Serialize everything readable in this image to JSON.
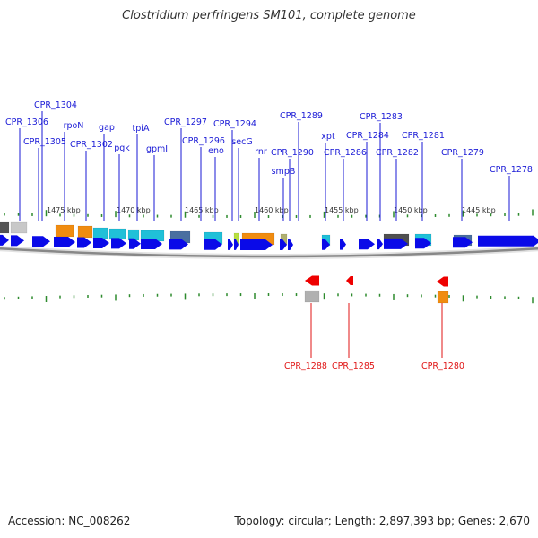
{
  "title": "Clostridium perfringens SM101, complete genome",
  "footer": {
    "accession": "Accession: NC_008262",
    "summary": "Topology: circular; Length: 2,897,393 bp; Genes: 2,670"
  },
  "colors": {
    "forward_label": "#1a1ad6",
    "reverse_label": "#e01515",
    "forward_arrow": "#0a0ae8",
    "reverse_arrow": "#ee0000",
    "tick": "#2e8b2e",
    "backbone": "#888888"
  },
  "scale_ticks": [
    {
      "label": "1475 kbp"
    },
    {
      "label": "1470 kbp"
    },
    {
      "label": "1465 kbp"
    },
    {
      "label": "1460 kbp"
    },
    {
      "label": "1455 kbp"
    },
    {
      "label": "1450 kbp"
    },
    {
      "label": "1445 kbp"
    }
  ],
  "forward_genes": [
    {
      "label": "CPR_1306"
    },
    {
      "label": "CPR_1304"
    },
    {
      "label": "CPR_1305"
    },
    {
      "label": "rpoN"
    },
    {
      "label": "CPR_1302"
    },
    {
      "label": "gap"
    },
    {
      "label": "pgk"
    },
    {
      "label": "tpiA"
    },
    {
      "label": "gpmI"
    },
    {
      "label": "CPR_1297"
    },
    {
      "label": "CPR_1296"
    },
    {
      "label": "eno"
    },
    {
      "label": "CPR_1294"
    },
    {
      "label": "secG"
    },
    {
      "label": "rnr"
    },
    {
      "label": "smpB"
    },
    {
      "label": "CPR_1290"
    },
    {
      "label": "CPR_1289"
    },
    {
      "label": "xpt"
    },
    {
      "label": "CPR_1286"
    },
    {
      "label": "CPR_1284"
    },
    {
      "label": "CPR_1283"
    },
    {
      "label": "CPR_1282"
    },
    {
      "label": "CPR_1281"
    },
    {
      "label": "CPR_1279"
    },
    {
      "label": "CPR_1278"
    }
  ],
  "reverse_genes": [
    {
      "label": "CPR_1288"
    },
    {
      "label": "CPR_1285"
    },
    {
      "label": "CPR_1280"
    }
  ]
}
